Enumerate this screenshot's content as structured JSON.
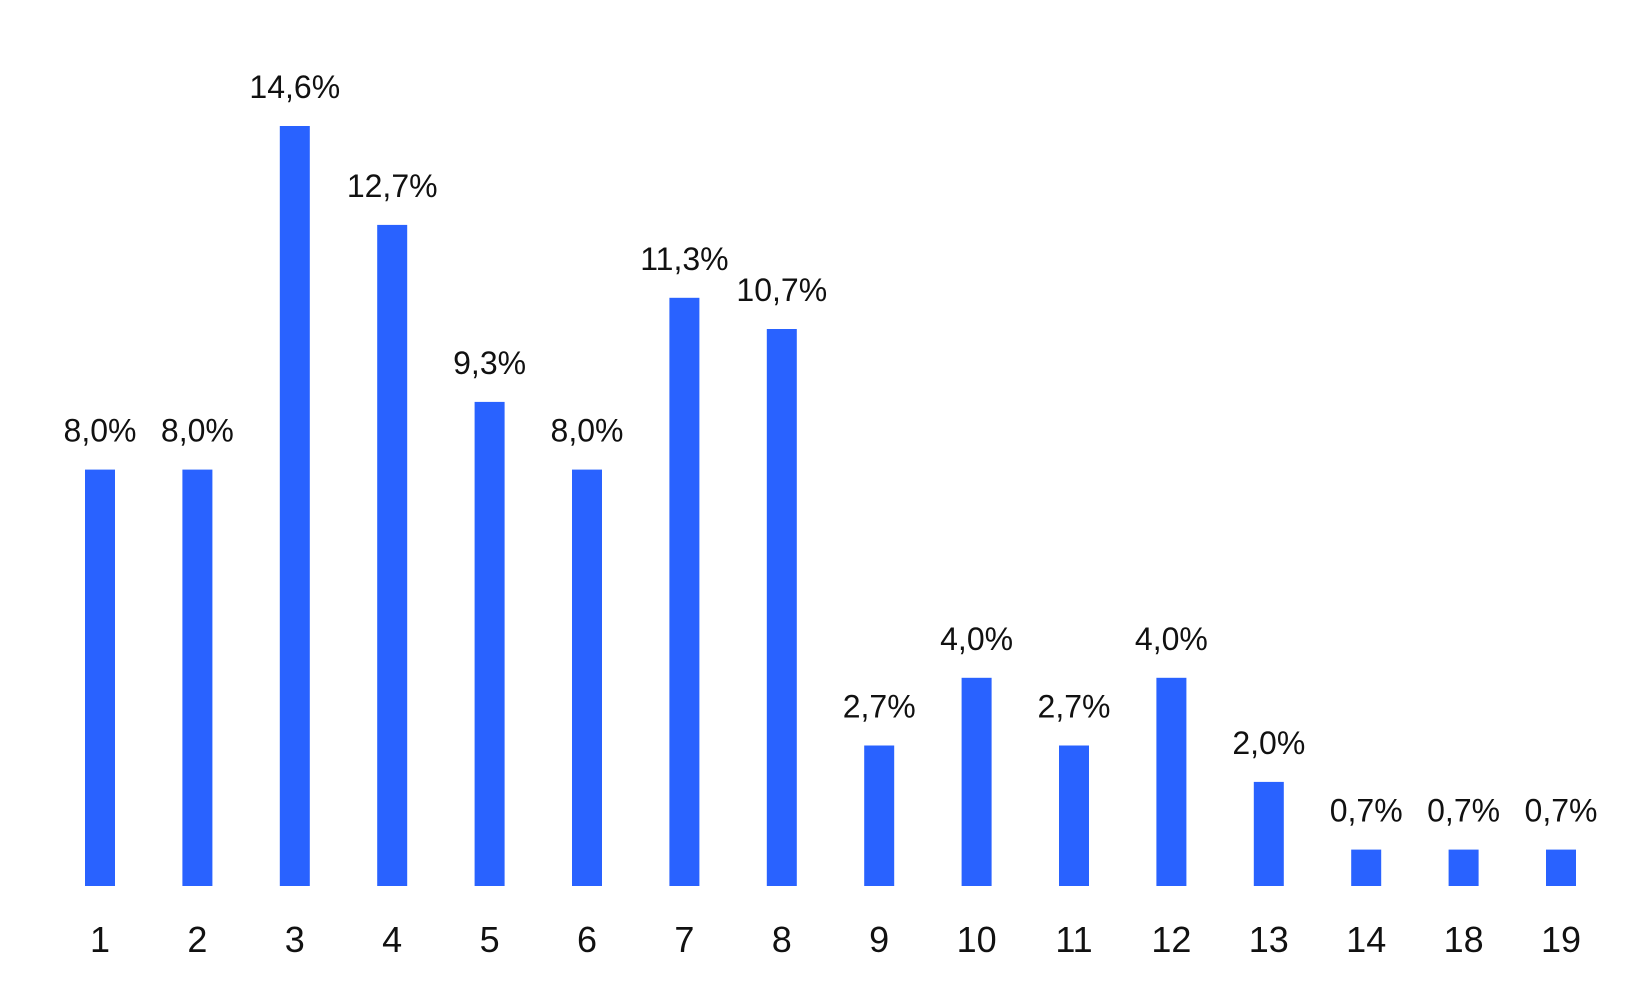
{
  "chart_data": {
    "type": "bar",
    "title": "",
    "xlabel": "",
    "ylabel": "",
    "categories": [
      "1",
      "2",
      "3",
      "4",
      "5",
      "6",
      "7",
      "8",
      "9",
      "10",
      "11",
      "12",
      "13",
      "14",
      "18",
      "19"
    ],
    "values": [
      8.0,
      8.0,
      14.6,
      12.7,
      9.3,
      8.0,
      11.3,
      10.7,
      2.7,
      4.0,
      2.7,
      4.0,
      2.0,
      0.7,
      0.7,
      0.7
    ],
    "value_labels": [
      "8,0%",
      "8,0%",
      "14,6%",
      "12,7%",
      "9,3%",
      "8,0%",
      "11,3%",
      "10,7%",
      "2,7%",
      "4,0%",
      "2,7%",
      "4,0%",
      "2,0%",
      "0,7%",
      "0,7%",
      "0,7%"
    ],
    "ylim": [
      0,
      14.6
    ],
    "grid": false,
    "legend": "none",
    "bar_color": "#2962FF"
  }
}
